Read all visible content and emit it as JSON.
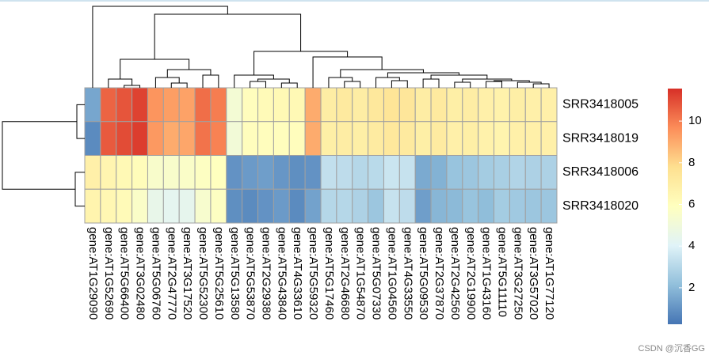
{
  "chart_data": {
    "type": "heatmap",
    "columns": [
      "gene:AT1G29090",
      "gene:AT1G52690",
      "gene:AT5G66400",
      "gene:AT3G02480",
      "gene:AT5G06760",
      "gene:AT2G47770",
      "gene:AT3G17520",
      "gene:AT5G52300",
      "gene:AT5G25610",
      "gene:AT5G13580",
      "gene:AT5G53870",
      "gene:AT2G29380",
      "gene:AT5G43840",
      "gene:AT4G33610",
      "gene:AT5G59320",
      "gene:AT5G17460",
      "gene:AT2G46680",
      "gene:AT1G54870",
      "gene:AT5G07330",
      "gene:AT1G04560",
      "gene:AT4G33550",
      "gene:AT5G09530",
      "gene:AT2G37870",
      "gene:AT2G42560",
      "gene:AT2G19900",
      "gene:AT1G43160",
      "gene:AT5G11110",
      "gene:AT3G27250",
      "gene:AT3G57020",
      "gene:AT1G77120"
    ],
    "rows": [
      "SRR3418005",
      "SRR3418019",
      "SRR3418006",
      "SRR3418020"
    ],
    "values": [
      [
        1.5,
        10.5,
        10.8,
        11.2,
        9.5,
        9.3,
        9.2,
        10.3,
        10.0,
        5.2,
        6.0,
        6.2,
        6.3,
        6.3,
        9.0,
        7.0,
        7.2,
        7.0,
        7.3,
        7.5,
        7.4,
        7.0,
        7.2,
        6.9,
        7.0,
        6.8,
        6.7,
        6.9,
        6.8,
        6.8
      ],
      [
        0.8,
        10.7,
        11.0,
        11.3,
        9.4,
        9.0,
        9.1,
        10.2,
        9.9,
        5.1,
        6.0,
        6.0,
        6.0,
        6.0,
        9.0,
        6.9,
        7.0,
        6.9,
        7.1,
        7.3,
        7.2,
        6.9,
        7.1,
        6.8,
        6.9,
        6.7,
        6.6,
        6.8,
        6.8,
        6.8
      ],
      [
        6.8,
        6.5,
        6.3,
        6.1,
        5.5,
        5.5,
        5.6,
        5.8,
        5.9,
        1.0,
        1.2,
        1.3,
        1.1,
        0.9,
        1.0,
        3.3,
        3.2,
        3.0,
        3.1,
        3.5,
        3.4,
        1.6,
        1.8,
        2.3,
        2.4,
        2.6,
        2.7,
        2.9,
        2.8,
        2.8
      ],
      [
        6.6,
        6.4,
        6.2,
        5.6,
        4.5,
        4.3,
        4.4,
        5.4,
        5.8,
        0.9,
        0.8,
        1.0,
        1.2,
        0.8,
        1.4,
        3.0,
        3.0,
        2.8,
        2.4,
        3.4,
        3.2,
        1.3,
        1.9,
        2.0,
        2.3,
        2.1,
        2.6,
        2.5,
        2.4,
        2.4
      ]
    ],
    "palette": [
      "#4575B4",
      "#91BFDB",
      "#E0F3F8",
      "#FFFFBF",
      "#FEE090",
      "#FC8D59",
      "#D73027"
    ],
    "color_range": [
      0.25,
      11.56
    ],
    "colorbar_ticks": [
      2,
      4,
      6,
      8,
      10
    ],
    "cell_border": "#a0a0a0",
    "watermark": "CSDN @沉香GG"
  }
}
